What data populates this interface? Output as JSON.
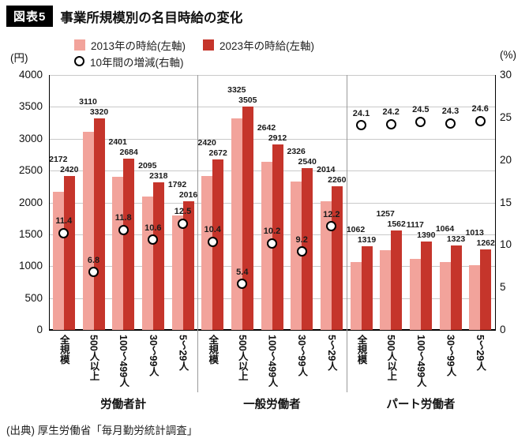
{
  "title": {
    "badge": "図表5",
    "text": "事業所規模別の名目時給の変化"
  },
  "legend": {
    "items": [
      {
        "label": "2013年の時給(左軸)",
        "marker": "square",
        "color": "#f2a39b"
      },
      {
        "label": "2023年の時給(左軸)",
        "marker": "square",
        "color": "#c5352b"
      },
      {
        "label": "10年間の増減(右軸)",
        "marker": "circle",
        "color": "#ffffff"
      }
    ]
  },
  "source": "(出典) 厚生労働省「毎月勤労統計調査」",
  "chart_data": {
    "type": "bar",
    "title": "事業所規模別の名目時給の変化",
    "ylabel_left": "(円)",
    "ylabel_right": "(%)",
    "ylim_left": [
      0,
      4000
    ],
    "ylim_right": [
      0,
      30
    ],
    "left_ticks": [
      0,
      500,
      1000,
      1500,
      2000,
      2500,
      3000,
      3500,
      4000
    ],
    "right_ticks": [
      0,
      5,
      10,
      15,
      20,
      25,
      30
    ],
    "grid": true,
    "legend_position": "top",
    "colors": {
      "series_2013": "#f2a39b",
      "series_2023": "#c5352b",
      "marker_fill": "#ffffff",
      "marker_stroke": "#000000"
    },
    "groups": [
      {
        "label": "労働者計",
        "categories": [
          "全規模",
          "500人以上",
          "100〜499人",
          "30〜99人",
          "5〜29人"
        ],
        "series": [
          {
            "name": "2013年の時給(左軸)",
            "values": [
              2172,
              3110,
              2401,
              2095,
              1792
            ]
          },
          {
            "name": "2023年の時給(左軸)",
            "values": [
              2420,
              3320,
              2684,
              2318,
              2016
            ]
          },
          {
            "name": "10年間の増減(右軸)",
            "values": [
              11.4,
              6.8,
              11.8,
              10.6,
              12.5
            ]
          }
        ]
      },
      {
        "label": "一般労働者",
        "categories": [
          "全規模",
          "500人以上",
          "100〜499人",
          "30〜99人",
          "5〜29人"
        ],
        "series": [
          {
            "name": "2013年の時給(左軸)",
            "values": [
              2420,
              3325,
              2642,
              2326,
              2014
            ]
          },
          {
            "name": "2023年の時給(左軸)",
            "values": [
              2672,
              3505,
              2912,
              2540,
              2260
            ]
          },
          {
            "name": "10年間の増減(右軸)",
            "values": [
              10.4,
              5.4,
              10.2,
              9.2,
              12.2
            ]
          }
        ]
      },
      {
        "label": "パート労働者",
        "categories": [
          "全規模",
          "500人以上",
          "100〜499人",
          "30〜99人",
          "5〜29人"
        ],
        "series": [
          {
            "name": "2013年の時給(左軸)",
            "values": [
              1062,
              1257,
              1117,
              1064,
              1013
            ]
          },
          {
            "name": "2023年の時給(左軸)",
            "values": [
              1319,
              1562,
              1390,
              1323,
              1262
            ]
          },
          {
            "name": "10年間の増減(右軸)",
            "values": [
              24.1,
              24.2,
              24.5,
              24.3,
              24.6
            ]
          }
        ]
      }
    ]
  }
}
